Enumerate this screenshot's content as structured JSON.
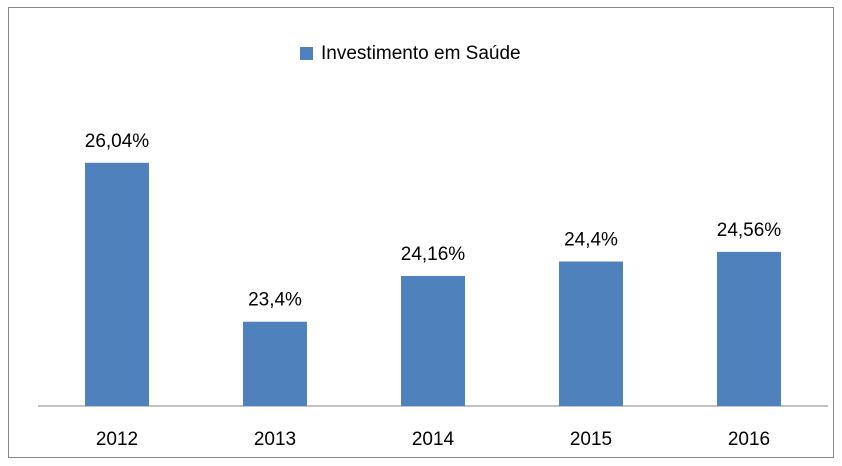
{
  "chart_data": {
    "type": "bar",
    "categories": [
      "2012",
      "2013",
      "2014",
      "2015",
      "2016"
    ],
    "series": [
      {
        "name": "Investimento em Saúde",
        "color": "#4f81bd",
        "values": [
          26.04,
          23.4,
          24.16,
          24.4,
          24.56
        ],
        "value_labels": [
          "26,04%",
          "23,4%",
          "24,16%",
          "24,4%",
          "24,56%"
        ]
      }
    ],
    "ylim": [
      22,
      27
    ],
    "legend": "top"
  }
}
